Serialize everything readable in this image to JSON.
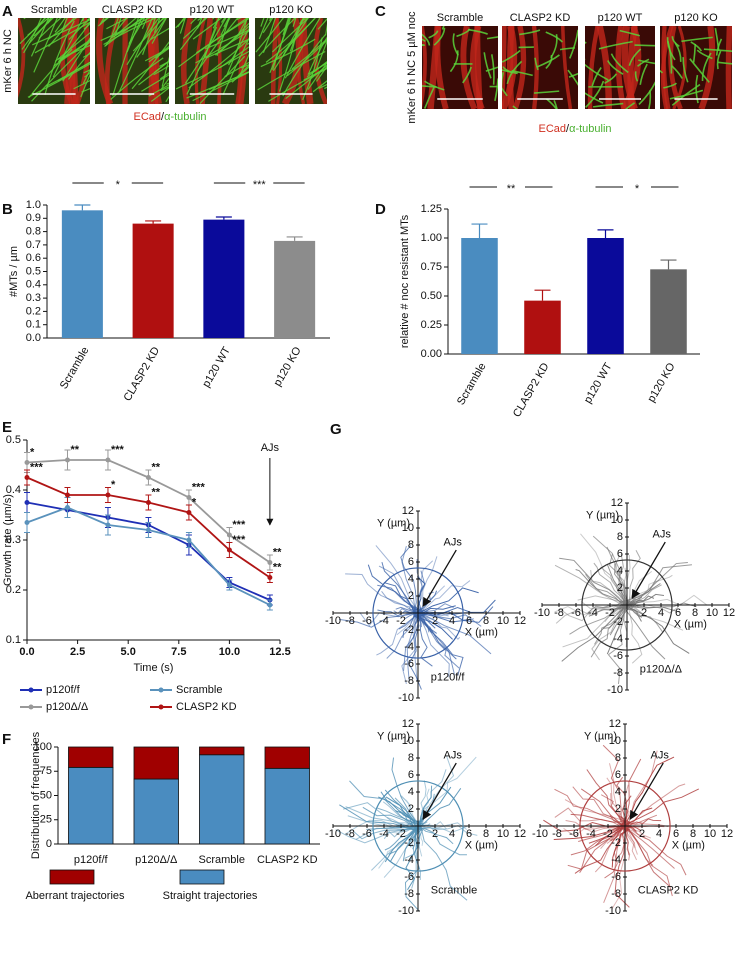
{
  "panel_labels": [
    "A",
    "B",
    "C",
    "D",
    "E",
    "F",
    "G"
  ],
  "image_panels": [
    {
      "ylabel": "mKer 6 h NC",
      "titles": [
        "Scramble",
        "CLASP2 KD",
        "p120 WT",
        "p120 KO"
      ],
      "caption": [
        "ECad",
        "/",
        "α-tubulin"
      ]
    },
    {
      "ylabel": "mKer 6 h NC 5 µM noc",
      "titles": [
        "Scramble",
        "CLASP2 KD",
        "p120 WT",
        "p120 KO"
      ],
      "caption": [
        "ECad",
        "/",
        "α-tubulin"
      ]
    }
  ],
  "chart_data": [
    {
      "type": "bar",
      "ylabel": "#MTs / µm",
      "categories": [
        "Scramble",
        "CLASP2 KD",
        "p120 WT",
        "p120 KO"
      ],
      "values": [
        0.96,
        0.86,
        0.89,
        0.73
      ],
      "errors": [
        0.04,
        0.02,
        0.02,
        0.03
      ],
      "colors": [
        "#4a8cc0",
        "#b01010",
        "#0a0a9a",
        "#8c8c8c"
      ],
      "ylim": [
        0,
        1.0
      ],
      "yticks": [
        {
          "value": 0,
          "label": "0.0"
        },
        0.1,
        0.2,
        0.3,
        0.4,
        0.5,
        0.6,
        0.7,
        0.8,
        0.9,
        {
          "value": 1.0,
          "label": "1.0"
        }
      ],
      "significance": [
        {
          "text": "*",
          "between": [
            "Scramble",
            "CLASP2 KD"
          ]
        },
        {
          "text": "***",
          "between": [
            "p120 WT",
            "p120 KO"
          ]
        }
      ]
    },
    {
      "type": "bar",
      "ylabel": "relative # noc resistant MTs",
      "categories": [
        "Scramble",
        "CLASP2 KD",
        "p120 WT",
        "p120 KO"
      ],
      "values": [
        1.0,
        0.46,
        1.0,
        0.73
      ],
      "errors": [
        0.12,
        0.09,
        0.07,
        0.08
      ],
      "colors": [
        "#4a8cc0",
        "#b01010",
        "#0a0a9a",
        "#666666"
      ],
      "ylim": [
        0,
        1.25
      ],
      "yticks": [
        {
          "value": 0,
          "label": "0.00"
        },
        {
          "value": 0.25,
          "label": "0.25"
        },
        {
          "value": 0.5,
          "label": "0.50"
        },
        {
          "value": 0.75,
          "label": "0.75"
        },
        {
          "value": 1.0,
          "label": "1.00"
        },
        {
          "value": 1.25,
          "label": "1.25"
        }
      ],
      "significance": [
        {
          "text": "**",
          "between": [
            "Scramble",
            "CLASP2 KD"
          ]
        },
        {
          "text": "*",
          "between": [
            "p120 WT",
            "p120 KO"
          ]
        }
      ]
    },
    {
      "type": "line",
      "xlabel": "Time (s)",
      "ylabel": "Growth rate (µm/s)",
      "x": [
        0,
        2,
        4,
        6,
        8,
        10,
        12
      ],
      "series": [
        {
          "name": "p120f/f",
          "color": "#1f2fb5",
          "values": [
            0.375,
            0.36,
            0.345,
            0.33,
            0.29,
            0.215,
            0.18
          ],
          "errors": [
            0.02,
            0.015,
            0.02,
            0.015,
            0.02,
            0.01,
            0.01
          ]
        },
        {
          "name": "Scramble",
          "color": "#5a92bc",
          "values": [
            0.335,
            0.365,
            0.33,
            0.32,
            0.3,
            0.21,
            0.17
          ],
          "errors": [
            0.02,
            0.02,
            0.02,
            0.015,
            0.015,
            0.01,
            0.01
          ]
        },
        {
          "name": "p120Δ/Δ",
          "color": "#999999",
          "values": [
            0.455,
            0.46,
            0.46,
            0.425,
            0.385,
            0.31,
            0.255
          ],
          "errors": [
            0.02,
            0.02,
            0.02,
            0.015,
            0.015,
            0.015,
            0.015
          ]
        },
        {
          "name": "CLASP2 KD",
          "color": "#b01515",
          "values": [
            0.425,
            0.39,
            0.39,
            0.375,
            0.355,
            0.28,
            0.225
          ],
          "errors": [
            0.015,
            0.015,
            0.015,
            0.015,
            0.015,
            0.015,
            0.01
          ]
        }
      ],
      "xlim": [
        0,
        12.5
      ],
      "xticks": [
        {
          "value": 0,
          "label": "0.0"
        },
        2.5,
        {
          "value": 5,
          "label": "5.0"
        },
        7.5,
        {
          "value": 10,
          "label": "10.0"
        },
        12.5
      ],
      "ylim": [
        0.1,
        0.5
      ],
      "yticks": [
        0.1,
        0.2,
        0.3,
        0.4,
        0.5
      ],
      "annotations": [
        {
          "text": "*",
          "series": "p120Δ/Δ",
          "x": 0
        },
        {
          "text": "**",
          "series": "p120Δ/Δ",
          "x": 2
        },
        {
          "text": "***",
          "series": "p120Δ/Δ",
          "x": 4
        },
        {
          "text": "**",
          "series": "p120Δ/Δ",
          "x": 6
        },
        {
          "text": "***",
          "series": "p120Δ/Δ",
          "x": 8
        },
        {
          "text": "***",
          "series": "p120Δ/Δ",
          "x": 10
        },
        {
          "text": "**",
          "series": "p120Δ/Δ",
          "x": 12
        },
        {
          "text": "***",
          "series": "CLASP2 KD",
          "x": 0
        },
        {
          "text": "*",
          "series": "CLASP2 KD",
          "x": 4
        },
        {
          "text": "**",
          "series": "CLASP2 KD",
          "x": 6
        },
        {
          "text": "*",
          "series": "CLASP2 KD",
          "x": 8
        },
        {
          "text": "***",
          "series": "CLASP2 KD",
          "x": 10
        },
        {
          "text": "**",
          "series": "CLASP2 KD",
          "x": 12
        }
      ],
      "arrow": {
        "text": "AJs",
        "x": 12
      }
    },
    {
      "type": "stacked_bar",
      "ylabel": "Distribution of frequencies",
      "categories": [
        "p120f/f",
        "p120Δ/Δ",
        "Scramble",
        "CLASP2 KD"
      ],
      "series": [
        {
          "name": "Straight trajectories",
          "color": "#4a8cc0",
          "values": [
            79,
            67,
            92,
            78
          ]
        },
        {
          "name": "Aberrant trajectories",
          "color": "#a00000",
          "values": [
            21,
            33,
            8,
            22
          ]
        }
      ],
      "ylim": [
        0,
        100
      ],
      "yticks": [
        0,
        25,
        50,
        75,
        100
      ]
    }
  ],
  "trajectory_panels": {
    "ylabel": "Y (µm)",
    "xlabel": "X (µm)",
    "arrow": "AJs",
    "ticks": [
      -10,
      -8,
      -6,
      -4,
      -2,
      2,
      4,
      6,
      8,
      10,
      12
    ],
    "plots": [
      {
        "name": "p120f/f",
        "color": "#3a62a8"
      },
      {
        "name": "p120Δ/Δ",
        "color": "#777777"
      },
      {
        "name": "Scramble",
        "color": "#4f8fb4"
      },
      {
        "name": "CLASP2 KD",
        "color": "#b04040"
      }
    ]
  }
}
